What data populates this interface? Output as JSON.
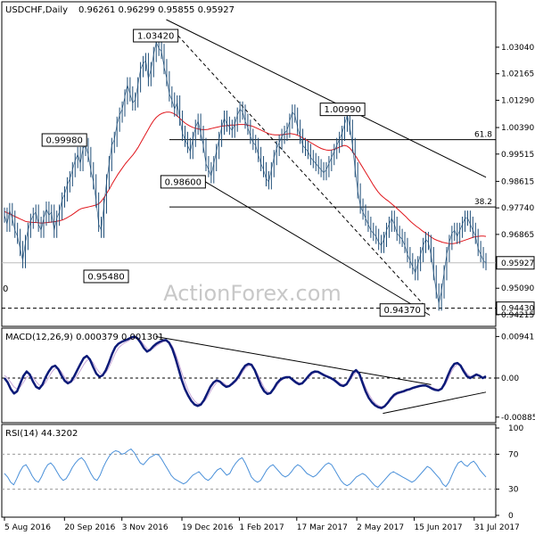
{
  "chart_data": [
    {
      "type": "line",
      "panel": "price",
      "header": {
        "symbol": "USDCHF,Daily",
        "ohlc": "0.96261 0.96299 0.95855 0.95927"
      },
      "watermark": "ActionForex.com",
      "ylim": [
        0.9395,
        1.0395
      ],
      "y_ticks": [
        "1.03040",
        "1.02165",
        "1.01290",
        "1.00390",
        "0.99515",
        "0.98615",
        "0.97740",
        "0.96865",
        "0.95927",
        "0.95090",
        "0.94430",
        "0.94215"
      ],
      "price_line": 0.95927,
      "support_line": 0.9443,
      "fib_levels": [
        {
          "label": "61.8",
          "value": 0.9999
        },
        {
          "label": "38.2",
          "value": 0.9777
        }
      ],
      "left_cut_label": "0",
      "callouts": [
        {
          "text": "1.03420",
          "date": "2016-12-16",
          "price": 1.0342,
          "side": "left"
        },
        {
          "text": "0.99980",
          "date": "2016-10-07",
          "price": 0.9998,
          "side": "left"
        },
        {
          "text": "0.98600",
          "date": "2017-01-06",
          "price": 0.986,
          "side": "left"
        },
        {
          "text": "0.95480",
          "date": "2016-11-08",
          "price": 0.9548,
          "side": "left"
        },
        {
          "text": "1.00990",
          "date": "2017-04-04",
          "price": 1.0099,
          "side": "right"
        },
        {
          "text": "0.94370",
          "date": "2017-06-23",
          "price": 0.9437,
          "side": "left"
        }
      ],
      "series": [
        {
          "name": "price",
          "color": "#1f4e78",
          "values": [
            0.975,
            0.972,
            0.9765,
            0.974,
            0.97,
            0.968,
            0.964,
            0.96,
            0.966,
            0.97,
            0.973,
            0.975,
            0.976,
            0.972,
            0.97,
            0.974,
            0.977,
            0.975,
            0.976,
            0.97,
            0.974,
            0.976,
            0.98,
            0.982,
            0.985,
            0.987,
            0.99,
            0.993,
            0.995,
            0.992,
            0.997,
            0.998,
            0.995,
            0.99,
            0.986,
            0.98,
            0.972,
            0.97,
            0.978,
            0.986,
            0.992,
            0.998,
            1.0,
            1.005,
            1.008,
            1.01,
            1.014,
            1.018,
            1.015,
            1.012,
            1.013,
            1.018,
            1.023,
            1.025,
            1.026,
            1.02,
            1.023,
            1.028,
            1.032,
            1.03,
            1.029,
            1.024,
            1.02,
            1.015,
            1.013,
            1.01,
            1.012,
            1.007,
            1.002,
            1.0,
            0.998,
            0.996,
            1.0,
            1.004,
            1.006,
            1.002,
            0.998,
            0.992,
            0.99,
            0.988,
            0.992,
            0.996,
            1.0,
            1.004,
            1.007,
            1.005,
            1.004,
            1.003,
            1.005,
            1.008,
            1.01,
            1.009,
            1.006,
            1.004,
            1.001,
            0.999,
            0.998,
            0.995,
            0.992,
            0.99,
            0.987,
            0.986,
            0.99,
            0.994,
            0.997,
            0.999,
            1.001,
            1.002,
            1.003,
            1.006,
            1.009,
            1.008,
            1.004,
            1.001,
            0.998,
            0.997,
            0.996,
            0.994,
            0.993,
            0.992,
            0.991,
            0.99,
            0.989,
            0.99,
            0.992,
            0.994,
            0.996,
            0.998,
            1.0,
            1.002,
            1.005,
            1.008,
            1.004,
            0.998,
            0.99,
            0.983,
            0.978,
            0.976,
            0.974,
            0.972,
            0.97,
            0.969,
            0.968,
            0.966,
            0.965,
            0.967,
            0.97,
            0.972,
            0.974,
            0.972,
            0.969,
            0.968,
            0.967,
            0.965,
            0.962,
            0.96,
            0.958,
            0.956,
            0.959,
            0.962,
            0.965,
            0.967,
            0.966,
            0.962,
            0.956,
            0.95,
            0.946,
            0.95,
            0.956,
            0.962,
            0.966,
            0.969,
            0.97,
            0.968,
            0.97,
            0.972,
            0.974,
            0.974,
            0.972,
            0.97,
            0.968,
            0.964,
            0.962,
            0.96,
            0.9593
          ]
        },
        {
          "name": "SMA",
          "color": "#e0161c",
          "values": [
            0.9762,
            0.9758,
            0.9755,
            0.975,
            0.9746,
            0.9742,
            0.9738,
            0.9734,
            0.973,
            0.9728,
            0.9727,
            0.9726,
            0.9726,
            0.9725,
            0.9724,
            0.9724,
            0.9725,
            0.9726,
            0.9727,
            0.9728,
            0.9729,
            0.9731,
            0.9733,
            0.9736,
            0.974,
            0.9745,
            0.975,
            0.9756,
            0.9762,
            0.9768,
            0.9772,
            0.9774,
            0.9776,
            0.9778,
            0.978,
            0.9782,
            0.9785,
            0.979,
            0.98,
            0.9812,
            0.9826,
            0.984,
            0.9856,
            0.987,
            0.9884,
            0.9896,
            0.9908,
            0.992,
            0.993,
            0.994,
            0.995,
            0.9962,
            0.9975,
            0.999,
            1.0005,
            1.002,
            1.0035,
            1.005,
            1.0063,
            1.0073,
            1.008,
            1.0085,
            1.0088,
            1.009,
            1.009,
            1.0088,
            1.0084,
            1.0078,
            1.007,
            1.0062,
            1.0055,
            1.0049,
            1.0044,
            1.004,
            1.0037,
            1.0035,
            1.0033,
            1.0032,
            1.0032,
            1.0033,
            1.0035,
            1.0037,
            1.0039,
            1.0041,
            1.0043,
            1.0044,
            1.0045,
            1.0046,
            1.0047,
            1.0047,
            1.0048,
            1.0049,
            1.0049,
            1.0049,
            1.0048,
            1.0046,
            1.0044,
            1.0041,
            1.0037,
            1.0033,
            1.0029,
            1.0025,
            1.0021,
            1.0018,
            1.0016,
            1.0015,
            1.0015,
            1.0015,
            1.0016,
            1.0017,
            1.0018,
            1.0019,
            1.0018,
            1.0016,
            1.0013,
            1.0009,
            1.0004,
            0.9999,
            0.9994,
            0.9989,
            0.9984,
            0.9979,
            0.9974,
            0.997,
            0.9967,
            0.9965,
            0.9964,
            0.9965,
            0.9967,
            0.997,
            0.9974,
            0.9978,
            0.998,
            0.9978,
            0.9972,
            0.9962,
            0.995,
            0.9937,
            0.9923,
            0.9909,
            0.9895,
            0.9881,
            0.9867,
            0.9853,
            0.984,
            0.9828,
            0.9818,
            0.981,
            0.9803,
            0.9797,
            0.979,
            0.9783,
            0.9776,
            0.9768,
            0.976,
            0.9752,
            0.9744,
            0.9735,
            0.9727,
            0.972,
            0.9713,
            0.9707,
            0.97,
            0.9694,
            0.9688,
            0.9682,
            0.9676,
            0.9671,
            0.9667,
            0.9664,
            0.9661,
            0.9659,
            0.9657,
            0.9656,
            0.9656,
            0.9657,
            0.9659,
            0.9662,
            0.9665,
            0.9668,
            0.9671,
            0.9674,
            0.9677,
            0.9679,
            0.968,
            0.9681,
            0.9681,
            0.968
          ]
        }
      ]
    },
    {
      "type": "line",
      "panel": "macd",
      "label": "MACD(12,26,9) 0.000379 0.001301",
      "ylim": [
        -0.0097,
        0.0105
      ],
      "y_ticks": [
        "0.009411",
        "0.00",
        "-0.008852"
      ],
      "series": [
        {
          "name": "MACD",
          "color": "#0b1a78",
          "values": [
            0.0,
            -0.001,
            -0.0025,
            -0.0035,
            -0.003,
            -0.0012,
            0.0005,
            0.0015,
            0.0008,
            -0.0008,
            -0.002,
            -0.0024,
            -0.0015,
            0.0002,
            0.0015,
            0.0025,
            0.0028,
            0.002,
            0.0006,
            -0.0006,
            -0.0012,
            -0.0008,
            0.0004,
            0.0018,
            0.0032,
            0.0045,
            0.005,
            0.0042,
            0.0025,
            0.001,
            0.0003,
            0.0006,
            0.0018,
            0.0035,
            0.0055,
            0.007,
            0.0078,
            0.0082,
            0.0085,
            0.0088,
            0.0092,
            0.0094,
            0.009,
            0.008,
            0.0068,
            0.006,
            0.0064,
            0.0072,
            0.0078,
            0.0082,
            0.0085,
            0.0086,
            0.008,
            0.0066,
            0.0045,
            0.002,
            -0.0005,
            -0.0025,
            -0.004,
            -0.0052,
            -0.006,
            -0.0063,
            -0.006,
            -0.005,
            -0.0035,
            -0.002,
            -0.001,
            -0.0005,
            -0.0008,
            -0.0015,
            -0.002,
            -0.0018,
            -0.0012,
            -0.0005,
            0.0005,
            0.0018,
            0.0028,
            0.0032,
            0.003,
            0.0018,
            0.0,
            -0.0018,
            -0.003,
            -0.0036,
            -0.0034,
            -0.0024,
            -0.0012,
            -0.0004,
            0.0,
            0.0002,
            0.0002,
            -0.0004,
            -0.001,
            -0.0014,
            -0.0012,
            -0.0004,
            0.0005,
            0.0012,
            0.0015,
            0.0014,
            0.001,
            0.0006,
            0.0003,
            0.0,
            -0.0004,
            -0.001,
            -0.0016,
            -0.0018,
            -0.0014,
            -0.0002,
            0.0012,
            0.0018,
            0.001,
            -0.001,
            -0.003,
            -0.0045,
            -0.0055,
            -0.0062,
            -0.0066,
            -0.0068,
            -0.0064,
            -0.0056,
            -0.0046,
            -0.0038,
            -0.0034,
            -0.0032,
            -0.003,
            -0.0027,
            -0.0025,
            -0.0022,
            -0.002,
            -0.0018,
            -0.0017,
            -0.0017,
            -0.002,
            -0.0024,
            -0.0027,
            -0.0028,
            -0.0024,
            -0.0012,
            0.0006,
            0.0022,
            0.0032,
            0.0034,
            0.0028,
            0.0015,
            0.0004,
            0.0,
            0.0004,
            0.0008,
            0.0005,
            0.0,
            0.0004
          ]
        },
        {
          "name": "Signal",
          "color": "#c9a8d8",
          "values": [
            0.0006,
            0.0,
            -0.001,
            -0.002,
            -0.0025,
            -0.002,
            -0.001,
            0.0002,
            0.0006,
            0.0002,
            -0.0008,
            -0.0016,
            -0.0018,
            -0.001,
            0.0002,
            0.0014,
            0.0022,
            0.0022,
            0.0014,
            0.0002,
            -0.0007,
            -0.0009,
            -0.0004,
            0.0006,
            0.0018,
            0.003,
            0.004,
            0.0042,
            0.0035,
            0.0022,
            0.0012,
            0.0008,
            0.0012,
            0.0024,
            0.004,
            0.0056,
            0.0068,
            0.0075,
            0.008,
            0.0084,
            0.0088,
            0.009,
            0.009,
            0.0085,
            0.0076,
            0.0067,
            0.0064,
            0.0067,
            0.0073,
            0.0078,
            0.0082,
            0.0084,
            0.0082,
            0.0072,
            0.0056,
            0.0035,
            0.0012,
            -0.001,
            -0.0028,
            -0.0042,
            -0.0052,
            -0.0058,
            -0.0058,
            -0.0054,
            -0.0044,
            -0.0031,
            -0.0019,
            -0.001,
            -0.0007,
            -0.001,
            -0.0016,
            -0.0017,
            -0.0015,
            -0.0009,
            0.0,
            0.0011,
            0.0022,
            0.0028,
            0.0028,
            0.0021,
            0.0008,
            -0.0008,
            -0.0022,
            -0.0031,
            -0.0033,
            -0.0027,
            -0.0017,
            -0.0008,
            -0.0002,
            0.0001,
            0.0001,
            -0.0002,
            -0.0007,
            -0.0011,
            -0.0011,
            -0.0006,
            0.0001,
            0.0008,
            0.0012,
            0.0013,
            0.0011,
            0.0008,
            0.0005,
            0.0002,
            -0.0002,
            -0.0007,
            -0.0012,
            -0.0015,
            -0.0014,
            -0.0006,
            0.0005,
            0.0013,
            0.001,
            -0.0004,
            -0.0021,
            -0.0036,
            -0.0048,
            -0.0057,
            -0.0062,
            -0.0065,
            -0.0063,
            -0.0058,
            -0.005,
            -0.0042,
            -0.0037,
            -0.0034,
            -0.0032,
            -0.0029,
            -0.0027,
            -0.0024,
            -0.0022,
            -0.002,
            -0.0018,
            -0.0017,
            -0.0018,
            -0.0021,
            -0.0024,
            -0.0026,
            -0.0025,
            -0.0017,
            -0.0003,
            0.0013,
            0.0025,
            0.0031,
            0.0029,
            0.002,
            0.001,
            0.0004,
            0.0004,
            0.0006,
            0.0005,
            0.0002,
            0.0003
          ]
        }
      ]
    },
    {
      "type": "line",
      "panel": "rsi",
      "label": "RSI(14) 44.3202",
      "ylim": [
        0,
        100
      ],
      "y_ticks": [
        100,
        70,
        30,
        0
      ],
      "levels": [
        70,
        30
      ],
      "series": [
        {
          "name": "RSI",
          "color": "#4a90d9",
          "values": [
            48,
            44,
            38,
            35,
            42,
            50,
            56,
            58,
            52,
            45,
            40,
            38,
            44,
            52,
            58,
            60,
            56,
            50,
            44,
            40,
            42,
            48,
            55,
            60,
            64,
            66,
            62,
            55,
            48,
            42,
            40,
            46,
            55,
            62,
            68,
            72,
            74,
            73,
            70,
            71,
            74,
            76,
            72,
            66,
            60,
            58,
            62,
            66,
            68,
            70,
            69,
            64,
            58,
            52,
            46,
            42,
            40,
            38,
            36,
            38,
            42,
            46,
            48,
            50,
            46,
            42,
            40,
            43,
            48,
            52,
            54,
            50,
            46,
            48,
            55,
            60,
            64,
            66,
            60,
            52,
            44,
            40,
            38,
            40,
            46,
            52,
            56,
            58,
            54,
            50,
            46,
            44,
            46,
            50,
            55,
            58,
            56,
            52,
            48,
            46,
            44,
            46,
            50,
            54,
            58,
            60,
            58,
            52,
            46,
            40,
            36,
            34,
            36,
            40,
            44,
            46,
            48,
            46,
            42,
            38,
            34,
            32,
            36,
            40,
            44,
            48,
            50,
            48,
            46,
            44,
            42,
            40,
            38,
            40,
            44,
            48,
            52,
            56,
            54,
            50,
            46,
            42,
            36,
            33,
            38,
            46,
            54,
            60,
            62,
            58,
            56,
            60,
            62,
            58,
            52,
            48,
            44
          ]
        }
      ]
    },
    {
      "type": "table",
      "panel": "x-axis",
      "x_ticks": [
        "5 Aug 2016",
        "20 Sep 2016",
        "3 Nov 2016",
        "19 Dec 2016",
        "1 Feb 2017",
        "17 Mar 2017",
        "2 May 2017",
        "15 Jun 2017",
        "31 Jul 2017"
      ]
    }
  ],
  "colors": {
    "price": "#1f4e78",
    "sma": "#e0161c",
    "macd": "#0b1a78",
    "signal": "#c9a8d8",
    "rsi": "#4a90d9",
    "watermark": "#c8c8c8"
  }
}
